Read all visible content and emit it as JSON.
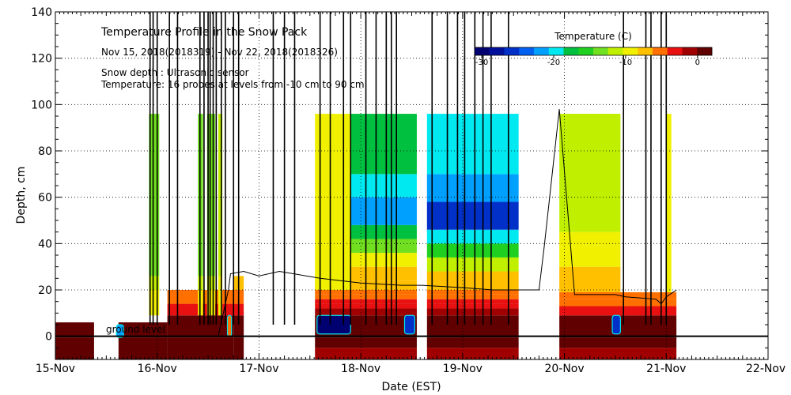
{
  "chart_data": {
    "type": "heatmap",
    "title": "Temperature Profile in the Snow Pack",
    "subtitle": "Nov 15, 2018(2018319) - Nov 22, 2018(2018326)",
    "annotations": [
      "Snow depth : Ultrasonic sensor",
      "Temperature: 16 probes at levels from -10 cm to 90 cm"
    ],
    "ground_label": "ground level",
    "xlabel": "Date (EST)",
    "ylabel": "Depth, cm",
    "x_ticks": [
      "15-Nov",
      "16-Nov",
      "17-Nov",
      "18-Nov",
      "19-Nov",
      "20-Nov",
      "21-Nov",
      "22-Nov"
    ],
    "xlim": [
      0,
      7
    ],
    "ylim": [
      -10,
      140
    ],
    "y_ticks": [
      0,
      20,
      40,
      60,
      80,
      100,
      120,
      140
    ],
    "grid": true,
    "colorbar": {
      "title": "Temperature (C)",
      "ticks": [
        -30,
        -20,
        -10,
        0
      ],
      "range": [
        -31,
        2
      ],
      "colors": [
        "#000070",
        "#00109a",
        "#0030c8",
        "#0060f0",
        "#00a0ff",
        "#00e8f0",
        "#00c040",
        "#20d020",
        "#70e020",
        "#c0f000",
        "#f0f000",
        "#ffc000",
        "#ff7000",
        "#e81010",
        "#a00000",
        "#600000"
      ]
    },
    "segments": [
      {
        "t0": 0.0,
        "t1": 0.38,
        "layers": [
          {
            "d0": -10,
            "d1": -0.5,
            "temp": 0.0
          },
          {
            "d0": -0.5,
            "d1": 6,
            "temp": 1.0
          }
        ]
      },
      {
        "t0": 0.62,
        "t1": 1.1,
        "layers": [
          {
            "d0": -10,
            "d1": -0.5,
            "temp": 0.0
          },
          {
            "d0": -0.5,
            "d1": 6,
            "temp": 1.0
          }
        ]
      },
      {
        "t0": 1.1,
        "t1": 1.75,
        "layers": [
          {
            "d0": -10,
            "d1": -0.5,
            "temp": 0.0
          },
          {
            "d0": -0.5,
            "d1": 9,
            "temp": 1.0
          },
          {
            "d0": 9,
            "d1": 14,
            "temp": -3.0
          },
          {
            "d0": 14,
            "d1": 20,
            "temp": -5.0
          }
        ]
      },
      {
        "t0": 1.75,
        "t1": 1.85,
        "layers": [
          {
            "d0": -10,
            "d1": -0.5,
            "temp": 0.0
          },
          {
            "d0": -0.5,
            "d1": 9,
            "temp": 1.0
          },
          {
            "d0": 9,
            "d1": 14,
            "temp": -3.0
          },
          {
            "d0": 14,
            "d1": 20,
            "temp": -6.0
          },
          {
            "d0": 20,
            "d1": 26,
            "temp": -8.0
          }
        ]
      },
      {
        "t0": 2.55,
        "t1": 3.55,
        "layers": [
          {
            "d0": -10,
            "d1": -5,
            "temp": -1.0
          },
          {
            "d0": -5,
            "d1": -0.5,
            "temp": 0.0
          },
          {
            "d0": -0.5,
            "d1": 9,
            "temp": 1.0
          },
          {
            "d0": 9,
            "d1": 12,
            "temp": -2.0
          },
          {
            "d0": 12,
            "d1": 14,
            "temp": -3.0
          },
          {
            "d0": 14,
            "d1": 16,
            "temp": -4.0
          },
          {
            "d0": 16,
            "d1": 18,
            "temp": -5.0
          },
          {
            "d0": 18,
            "d1": 20,
            "temp": -6.0
          },
          {
            "d0": 20,
            "d1": 24,
            "temp": -8.0
          }
        ]
      },
      {
        "t0": 3.65,
        "t1": 4.55,
        "layers": [
          {
            "d0": -10,
            "d1": -5,
            "temp": -1.0
          },
          {
            "d0": -5,
            "d1": -0.5,
            "temp": 0.0
          },
          {
            "d0": -0.5,
            "d1": 9,
            "temp": 1.0
          },
          {
            "d0": 9,
            "d1": 12,
            "temp": -2.0
          },
          {
            "d0": 12,
            "d1": 14,
            "temp": -3.0
          },
          {
            "d0": 14,
            "d1": 16,
            "temp": -4.0
          },
          {
            "d0": 16,
            "d1": 18,
            "temp": -5.0
          },
          {
            "d0": 18,
            "d1": 20,
            "temp": -6.0
          }
        ]
      },
      {
        "t0": 4.95,
        "t1": 6.1,
        "layers": [
          {
            "d0": -10,
            "d1": -5,
            "temp": -1.0
          },
          {
            "d0": -5,
            "d1": -0.5,
            "temp": 0.0
          },
          {
            "d0": -0.5,
            "d1": 9,
            "temp": 1.0
          },
          {
            "d0": 9,
            "d1": 13,
            "temp": -3.0
          },
          {
            "d0": 13,
            "d1": 16,
            "temp": -5.0
          },
          {
            "d0": 16,
            "d1": 19,
            "temp": -6.0
          }
        ]
      }
    ],
    "profiles": [
      {
        "t0": 0.92,
        "t1": 1.02,
        "layers": [
          {
            "d0": 9,
            "d1": 20,
            "temp": -9.0
          },
          {
            "d0": 20,
            "d1": 26,
            "temp": -11.0
          },
          {
            "d0": 26,
            "d1": 96,
            "temp": -13.0
          }
        ]
      },
      {
        "t0": 1.4,
        "t1": 1.45,
        "layers": [
          {
            "d0": 9,
            "d1": 20,
            "temp": -9.0
          },
          {
            "d0": 20,
            "d1": 26,
            "temp": -11.0
          },
          {
            "d0": 26,
            "d1": 96,
            "temp": -13.0
          }
        ]
      },
      {
        "t0": 1.49,
        "t1": 1.57,
        "layers": [
          {
            "d0": 9,
            "d1": 20,
            "temp": -9.0
          },
          {
            "d0": 20,
            "d1": 26,
            "temp": -11.0
          },
          {
            "d0": 26,
            "d1": 96,
            "temp": -13.0
          }
        ]
      },
      {
        "t0": 1.6,
        "t1": 1.64,
        "layers": [
          {
            "d0": 9,
            "d1": 26,
            "temp": -9.0
          },
          {
            "d0": 26,
            "d1": 96,
            "temp": -11.0
          }
        ]
      },
      {
        "t0": 2.55,
        "t1": 2.9,
        "layers": [
          {
            "d0": 20,
            "d1": 96,
            "temp": -10.0
          }
        ]
      },
      {
        "t0": 2.9,
        "t1": 3.55,
        "layers": [
          {
            "d0": 24,
            "d1": 30,
            "temp": -8.0
          },
          {
            "d0": 30,
            "d1": 36,
            "temp": -10.0
          },
          {
            "d0": 36,
            "d1": 42,
            "temp": -14.0
          },
          {
            "d0": 42,
            "d1": 48,
            "temp": -17.0
          },
          {
            "d0": 48,
            "d1": 60,
            "temp": -22.0
          },
          {
            "d0": 60,
            "d1": 70,
            "temp": -19.0
          },
          {
            "d0": 70,
            "d1": 96,
            "temp": -17.0
          }
        ]
      },
      {
        "t0": 3.65,
        "t1": 4.55,
        "layers": [
          {
            "d0": 20,
            "d1": 28,
            "temp": -8.0
          },
          {
            "d0": 28,
            "d1": 34,
            "temp": -12.0
          },
          {
            "d0": 34,
            "d1": 40,
            "temp": -15.0
          },
          {
            "d0": 40,
            "d1": 46,
            "temp": -19.0
          },
          {
            "d0": 46,
            "d1": 58,
            "temp": -25.0
          },
          {
            "d0": 58,
            "d1": 70,
            "temp": -22.0
          },
          {
            "d0": 70,
            "d1": 96,
            "temp": -19.0
          }
        ]
      },
      {
        "t0": 4.95,
        "t1": 5.55,
        "layers": [
          {
            "d0": 19,
            "d1": 30,
            "temp": -7.0
          },
          {
            "d0": 30,
            "d1": 45,
            "temp": -9.0
          },
          {
            "d0": 45,
            "d1": 96,
            "temp": -11.0
          }
        ]
      },
      {
        "t0": 6.0,
        "t1": 6.05,
        "layers": [
          {
            "d0": 19,
            "d1": 96,
            "temp": -9.0
          }
        ]
      }
    ],
    "cold_spots": [
      {
        "t0": 2.57,
        "t1": 2.9,
        "d0": 1,
        "d1": 9,
        "temp": -30.0
      },
      {
        "t0": 3.43,
        "t1": 3.53,
        "d0": 1,
        "d1": 9,
        "temp": -25.0
      },
      {
        "t0": 5.47,
        "t1": 5.55,
        "d0": 1,
        "d1": 9,
        "temp": -25.0
      },
      {
        "t0": 0.6,
        "t1": 0.67,
        "d0": -0.5,
        "d1": 5,
        "temp": -22.0
      },
      {
        "t0": 1.69,
        "t1": 1.73,
        "d0": 0,
        "d1": 9,
        "temp": -6.0
      }
    ],
    "snow_depth": {
      "x": [
        0.0,
        0.95,
        1.6,
        1.7,
        1.72,
        1.85,
        2.0,
        2.2,
        2.6,
        3.0,
        3.4,
        3.6,
        4.0,
        4.3,
        4.6,
        4.75,
        4.8,
        4.95,
        5.1,
        5.5,
        5.6,
        5.9,
        5.95,
        6.0,
        6.1
      ],
      "y": [
        0,
        0,
        0,
        20,
        27,
        28,
        26,
        28,
        25,
        23,
        22,
        22,
        21,
        20,
        20,
        20,
        38,
        98,
        18,
        18,
        17,
        16,
        14,
        17,
        20
      ]
    },
    "spikes": [
      0.93,
      0.96,
      1.0,
      1.12,
      1.2,
      1.42,
      1.46,
      1.5,
      1.52,
      1.55,
      1.58,
      1.63,
      1.67,
      1.75,
      1.8,
      2.14,
      2.25,
      2.35,
      2.6,
      2.7,
      2.83,
      2.9,
      3.05,
      3.15,
      3.25,
      3.3,
      3.35,
      3.7,
      3.85,
      3.95,
      4.02,
      4.12,
      4.2,
      4.28,
      4.45,
      5.58,
      5.8,
      5.85,
      5.95,
      6.0
    ]
  }
}
